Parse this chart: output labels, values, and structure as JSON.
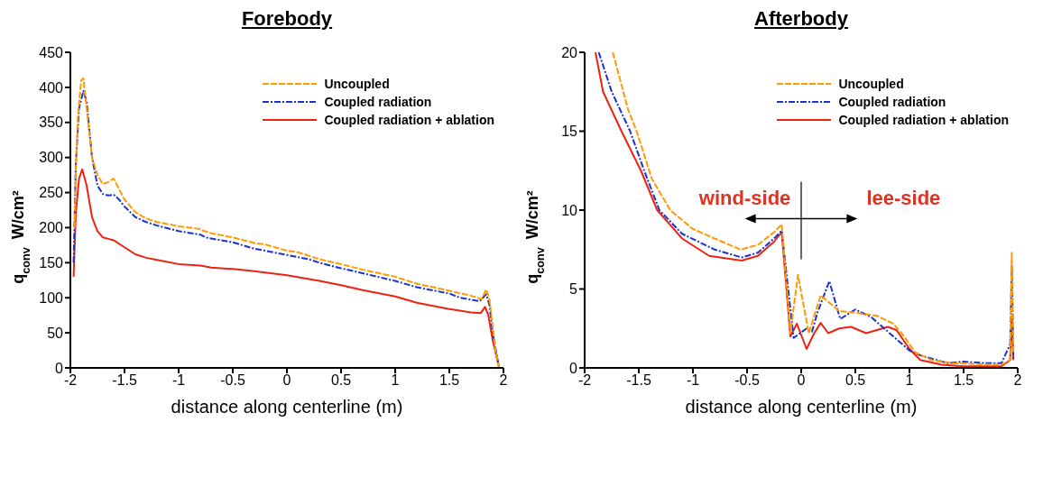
{
  "chart_data": [
    {
      "type": "line",
      "title": "Forebody",
      "xlabel": "distance along centerline (m)",
      "ylabel": "q$_{conv}$ W/cm²",
      "xlim": [
        -2,
        2
      ],
      "xticks": [
        -2,
        -1.5,
        -1,
        -0.5,
        0,
        0.5,
        1,
        1.5,
        2
      ],
      "ylim": [
        0,
        450
      ],
      "yticks": [
        0,
        50,
        100,
        150,
        200,
        250,
        300,
        350,
        400,
        450
      ],
      "legend": "top right",
      "marker": "none",
      "series": [
        {
          "name": "Uncoupled",
          "color": "#ff9900",
          "line_style": "dashed",
          "x": [
            -1.96,
            -1.95,
            -1.93,
            -1.9,
            -1.88,
            -1.85,
            -1.8,
            -1.75,
            -1.7,
            -1.65,
            -1.6,
            -1.55,
            -1.5,
            -1.4,
            -1.3,
            -1.2,
            -1,
            -0.8,
            -0.78,
            -0.7,
            -0.5,
            -0.3,
            -0.2,
            0,
            0.1,
            0.2,
            0.3,
            0.5,
            0.7,
            1,
            1.2,
            1.5,
            1.7,
            1.8,
            1.84,
            1.87,
            1.9,
            1.93,
            1.96
          ],
          "values": [
            200,
            280,
            360,
            410,
            413,
            370,
            300,
            275,
            262,
            265,
            270,
            255,
            240,
            222,
            213,
            208,
            202,
            198,
            196,
            192,
            186,
            178,
            176,
            167,
            165,
            160,
            155,
            148,
            140,
            130,
            120,
            110,
            103,
            98,
            112,
            98,
            60,
            20,
            0
          ]
        },
        {
          "name": "Coupled radiation",
          "color": "#1a33cc",
          "line_style": "dashdot",
          "x": [
            -1.97,
            -1.95,
            -1.92,
            -1.88,
            -1.85,
            -1.8,
            -1.75,
            -1.7,
            -1.65,
            -1.6,
            -1.55,
            -1.5,
            -1.4,
            -1.3,
            -1.2,
            -1,
            -0.8,
            -0.75,
            -0.5,
            -0.3,
            0,
            0.2,
            0.3,
            0.5,
            0.7,
            1,
            1.2,
            1.5,
            1.6,
            1.78,
            1.84,
            1.87,
            1.9,
            1.96
          ],
          "values": [
            150,
            290,
            370,
            395,
            380,
            300,
            260,
            248,
            246,
            247,
            240,
            230,
            215,
            208,
            203,
            195,
            190,
            186,
            179,
            170,
            161,
            155,
            150,
            142,
            135,
            124,
            115,
            106,
            100,
            95,
            105,
            90,
            50,
            0
          ]
        },
        {
          "name": "Coupled radiation + ablation",
          "color": "#ee2211",
          "line_style": "solid",
          "x": [
            -1.97,
            -1.95,
            -1.92,
            -1.89,
            -1.85,
            -1.8,
            -1.75,
            -1.7,
            -1.65,
            -1.6,
            -1.5,
            -1.4,
            -1.3,
            -1.2,
            -1,
            -0.8,
            -0.7,
            -0.5,
            -0.3,
            0,
            0.3,
            0.5,
            0.7,
            1,
            1.2,
            1.5,
            1.7,
            1.79,
            1.83,
            1.86,
            1.9,
            1.96
          ],
          "values": [
            130,
            220,
            270,
            283,
            260,
            215,
            195,
            186,
            184,
            182,
            172,
            162,
            157,
            154,
            148,
            146,
            143,
            141,
            138,
            132,
            124,
            118,
            111,
            102,
            93,
            84,
            79,
            78,
            87,
            75,
            40,
            0
          ]
        }
      ]
    },
    {
      "type": "line",
      "title": "Afterbody",
      "xlabel": "distance along centerline (m)",
      "ylabel": "q$_{conv}$ W/cm²",
      "xlim": [
        -2,
        2
      ],
      "xticks": [
        -2,
        -1.5,
        -1,
        -0.5,
        0,
        0.5,
        1,
        1.5,
        2
      ],
      "ylim": [
        0,
        20
      ],
      "yticks": [
        0,
        5,
        10,
        15,
        20
      ],
      "legend": "top right",
      "marker": "none",
      "annotations": [
        "wind-side",
        "lee-side"
      ],
      "series": [
        {
          "name": "Uncoupled",
          "color": "#ff9900",
          "line_style": "dashed",
          "x": [
            -1.74,
            -1.6,
            -1.52,
            -1.38,
            -1.21,
            -1,
            -0.8,
            -0.56,
            -0.4,
            -0.25,
            -0.18,
            -0.1,
            -0.03,
            0.07,
            0.18,
            0.35,
            0.5,
            0.7,
            0.85,
            0.95,
            1.05,
            1.2,
            1.4,
            1.6,
            1.85,
            1.93,
            1.945,
            1.96
          ],
          "values": [
            20,
            16.4,
            15,
            12,
            10,
            8.8,
            8.2,
            7.5,
            7.8,
            8.6,
            9.1,
            2.2,
            5.9,
            2.2,
            4.6,
            3.6,
            3.5,
            3.3,
            2.8,
            2,
            1,
            0.5,
            0.3,
            0.25,
            0.2,
            0.5,
            7.3,
            1
          ]
        },
        {
          "name": "Coupled radiation",
          "color": "#1a33cc",
          "line_style": "dashdot",
          "x": [
            -1.87,
            -1.75,
            -1.58,
            -1.45,
            -1.31,
            -1.1,
            -0.8,
            -0.55,
            -0.4,
            -0.25,
            -0.18,
            -0.07,
            0.05,
            0.1,
            0.15,
            0.26,
            0.36,
            0.5,
            0.65,
            0.85,
            1,
            1.1,
            1.35,
            1.5,
            1.7,
            1.85,
            1.93,
            1.945,
            1.96
          ],
          "values": [
            20,
            17.5,
            15,
            12.5,
            10,
            8.5,
            7.5,
            7,
            7.3,
            8.2,
            8.7,
            1.9,
            2.5,
            2.3,
            3.5,
            5.5,
            3.1,
            3.7,
            3.2,
            2,
            1.1,
            0.8,
            0.3,
            0.4,
            0.3,
            0.3,
            1.5,
            6.5,
            0.6
          ]
        },
        {
          "name": "Coupled radiation + ablation",
          "color": "#ee2211",
          "line_style": "solid",
          "x": [
            -1.9,
            -1.83,
            -1.66,
            -1.48,
            -1.33,
            -1.1,
            -0.85,
            -0.55,
            -0.4,
            -0.25,
            -0.18,
            -0.1,
            -0.04,
            0.05,
            0.12,
            0.18,
            0.25,
            0.35,
            0.46,
            0.6,
            0.8,
            0.88,
            1,
            1.1,
            1.3,
            1.5,
            1.85,
            1.93,
            1.945,
            1.96
          ],
          "values": [
            20,
            17.5,
            15,
            12.5,
            10,
            8.2,
            7.1,
            6.8,
            7.1,
            8,
            8.6,
            2,
            2.8,
            1.2,
            2.2,
            2.85,
            2.2,
            2.5,
            2.6,
            2.2,
            2.6,
            2.4,
            1.2,
            0.5,
            0.2,
            0.1,
            0.1,
            0.5,
            3.2,
            0.5
          ]
        }
      ]
    }
  ]
}
